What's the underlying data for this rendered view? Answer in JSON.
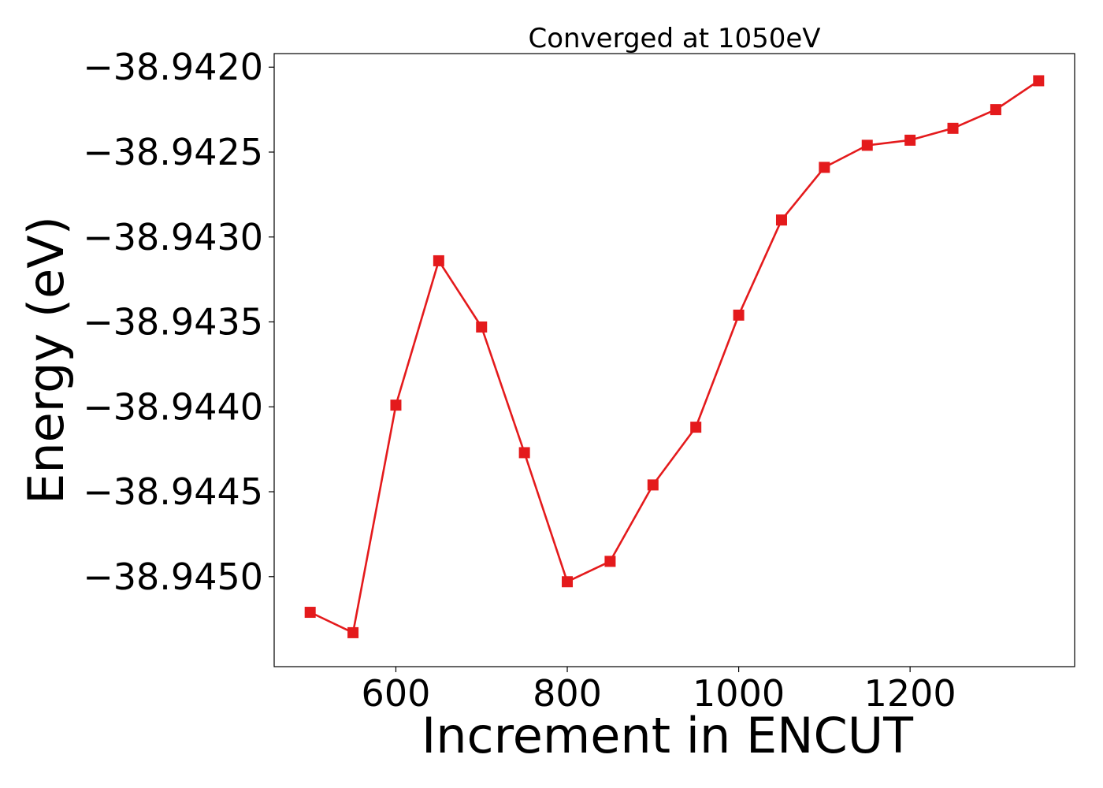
{
  "chart_data": {
    "type": "line",
    "title": "Converged at 1050eV",
    "xlabel": "Increment in ENCUT",
    "ylabel": "Energy (eV)",
    "xlim": [
      458,
      1392
    ],
    "ylim": [
      -38.94553,
      -38.94192
    ],
    "xticks": [
      600,
      800,
      1000,
      1200
    ],
    "xtick_labels": [
      "600",
      "800",
      "1000",
      "1200"
    ],
    "yticks": [
      -38.942,
      -38.9425,
      -38.943,
      -38.9435,
      -38.944,
      -38.9445,
      -38.945
    ],
    "ytick_labels": [
      "−38.9420",
      "−38.9425",
      "−38.9430",
      "−38.9435",
      "−38.9440",
      "−38.9445",
      "−38.9450"
    ],
    "grid": false,
    "series": [
      {
        "color": "#e41a1c",
        "marker": "square",
        "x": [
          500,
          550,
          600,
          650,
          700,
          750,
          800,
          850,
          900,
          950,
          1000,
          1050,
          1100,
          1150,
          1200,
          1250,
          1300,
          1350
        ],
        "y": [
          -38.94521,
          -38.94533,
          -38.94399,
          -38.94314,
          -38.94353,
          -38.94427,
          -38.94503,
          -38.94491,
          -38.94446,
          -38.94412,
          -38.94346,
          -38.9429,
          -38.94259,
          -38.94246,
          -38.94243,
          -38.94236,
          -38.94225,
          -38.94208
        ]
      }
    ]
  }
}
